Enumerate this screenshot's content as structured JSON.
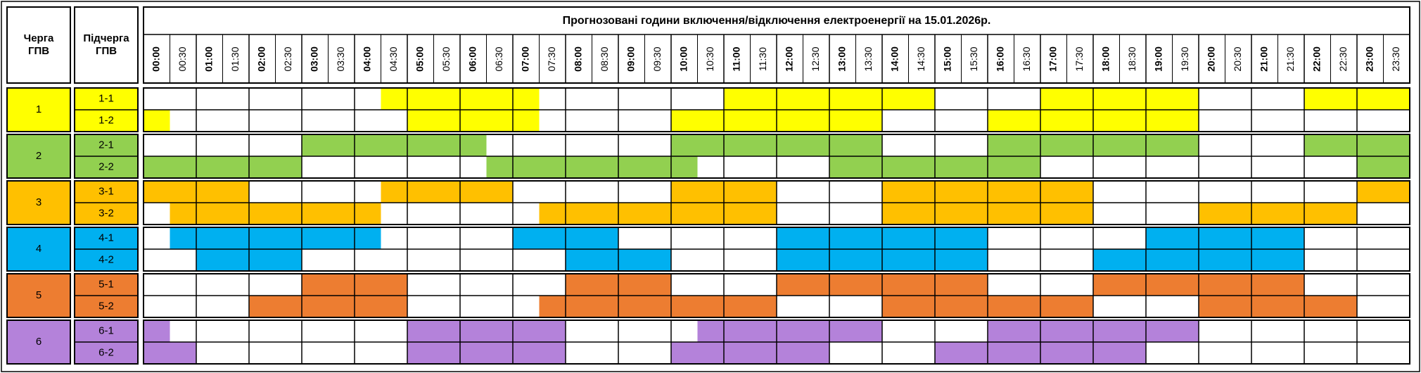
{
  "header": {
    "title": "Прогнозовані години включення/відключення електроенергії на 15.01.2026р.",
    "queue_label": "Черга ГПВ",
    "subqueue_label": "Підчерга ГПВ"
  },
  "times": [
    "00:00",
    "00:30",
    "01:00",
    "01:30",
    "02:00",
    "02:30",
    "03:00",
    "03:30",
    "04:00",
    "04:30",
    "05:00",
    "05:30",
    "06:00",
    "06:30",
    "07:00",
    "07:30",
    "08:00",
    "08:30",
    "09:00",
    "09:30",
    "10:00",
    "10:30",
    "11:00",
    "11:30",
    "12:00",
    "12:30",
    "13:00",
    "13:30",
    "14:00",
    "14:30",
    "15:00",
    "15:30",
    "16:00",
    "16:30",
    "17:00",
    "17:30",
    "18:00",
    "18:30",
    "19:00",
    "19:30",
    "20:00",
    "20:30",
    "21:00",
    "21:30",
    "22:00",
    "22:30",
    "23:00",
    "23:30"
  ],
  "groups": [
    {
      "label": "1",
      "color": "#ffff00",
      "subqueues": [
        {
          "label": "1-1",
          "slots": [
            0,
            0,
            0,
            0,
            0,
            0,
            0,
            0,
            0,
            1,
            1,
            1,
            1,
            1,
            1,
            0,
            0,
            0,
            0,
            0,
            0,
            0,
            1,
            1,
            1,
            1,
            1,
            1,
            1,
            1,
            0,
            0,
            0,
            0,
            1,
            1,
            1,
            1,
            1,
            1,
            0,
            0,
            0,
            0,
            1,
            1,
            1,
            1
          ]
        },
        {
          "label": "1-2",
          "slots": [
            1,
            0,
            0,
            0,
            0,
            0,
            0,
            0,
            0,
            0,
            1,
            1,
            1,
            1,
            1,
            0,
            0,
            0,
            0,
            0,
            1,
            1,
            1,
            1,
            1,
            1,
            1,
            1,
            0,
            0,
            0,
            0,
            1,
            1,
            1,
            1,
            1,
            1,
            1,
            1,
            0,
            0,
            0,
            0,
            0,
            0,
            0,
            0
          ]
        }
      ]
    },
    {
      "label": "2",
      "color": "#92d050",
      "subqueues": [
        {
          "label": "2-1",
          "slots": [
            0,
            0,
            0,
            0,
            0,
            0,
            1,
            1,
            1,
            1,
            1,
            1,
            1,
            0,
            0,
            0,
            0,
            0,
            0,
            0,
            1,
            1,
            1,
            1,
            1,
            1,
            1,
            1,
            0,
            0,
            0,
            0,
            1,
            1,
            1,
            1,
            1,
            1,
            1,
            1,
            0,
            0,
            0,
            0,
            1,
            1,
            1,
            1
          ]
        },
        {
          "label": "2-2",
          "slots": [
            1,
            1,
            1,
            1,
            1,
            1,
            0,
            0,
            0,
            0,
            0,
            0,
            0,
            1,
            1,
            1,
            1,
            1,
            1,
            1,
            1,
            0,
            0,
            0,
            0,
            0,
            1,
            1,
            1,
            1,
            1,
            1,
            1,
            1,
            0,
            0,
            0,
            0,
            0,
            0,
            0,
            0,
            0,
            0,
            0,
            0,
            1,
            1
          ]
        }
      ]
    },
    {
      "label": "3",
      "color": "#ffc000",
      "subqueues": [
        {
          "label": "3-1",
          "slots": [
            1,
            1,
            1,
            1,
            0,
            0,
            0,
            0,
            0,
            1,
            1,
            1,
            1,
            1,
            0,
            0,
            0,
            0,
            0,
            0,
            1,
            1,
            1,
            1,
            0,
            0,
            0,
            0,
            1,
            1,
            1,
            1,
            1,
            1,
            1,
            1,
            0,
            0,
            0,
            0,
            0,
            0,
            0,
            0,
            0,
            0,
            1,
            1
          ]
        },
        {
          "label": "3-2",
          "slots": [
            0,
            1,
            1,
            1,
            1,
            1,
            1,
            1,
            1,
            0,
            0,
            0,
            0,
            0,
            0,
            1,
            1,
            1,
            1,
            1,
            1,
            1,
            1,
            1,
            0,
            0,
            0,
            0,
            1,
            1,
            1,
            1,
            1,
            1,
            1,
            1,
            0,
            0,
            0,
            0,
            1,
            1,
            1,
            1,
            1,
            1,
            0,
            0
          ]
        }
      ]
    },
    {
      "label": "4",
      "color": "#00b0f0",
      "subqueues": [
        {
          "label": "4-1",
          "slots": [
            0,
            1,
            1,
            1,
            1,
            1,
            1,
            1,
            1,
            0,
            0,
            0,
            0,
            0,
            1,
            1,
            1,
            1,
            0,
            0,
            0,
            0,
            0,
            0,
            1,
            1,
            1,
            1,
            1,
            1,
            1,
            1,
            0,
            0,
            0,
            0,
            0,
            0,
            1,
            1,
            1,
            1,
            1,
            1,
            0,
            0,
            0,
            0
          ]
        },
        {
          "label": "4-2",
          "slots": [
            0,
            0,
            1,
            1,
            1,
            1,
            0,
            0,
            0,
            0,
            0,
            0,
            0,
            0,
            0,
            0,
            1,
            1,
            1,
            1,
            0,
            0,
            0,
            0,
            1,
            1,
            1,
            1,
            1,
            1,
            1,
            1,
            0,
            0,
            0,
            0,
            1,
            1,
            1,
            1,
            1,
            1,
            1,
            1,
            0,
            0,
            0,
            0
          ]
        }
      ]
    },
    {
      "label": "5",
      "color": "#ed7d31",
      "subqueues": [
        {
          "label": "5-1",
          "slots": [
            0,
            0,
            0,
            0,
            0,
            0,
            1,
            1,
            1,
            1,
            0,
            0,
            0,
            0,
            0,
            0,
            1,
            1,
            1,
            1,
            0,
            0,
            0,
            0,
            1,
            1,
            1,
            1,
            1,
            1,
            1,
            1,
            0,
            0,
            0,
            0,
            1,
            1,
            1,
            1,
            1,
            1,
            1,
            1,
            0,
            0,
            0,
            0
          ]
        },
        {
          "label": "5-2",
          "slots": [
            0,
            0,
            0,
            0,
            1,
            1,
            1,
            1,
            1,
            1,
            0,
            0,
            0,
            0,
            0,
            1,
            1,
            1,
            1,
            1,
            1,
            1,
            1,
            1,
            0,
            0,
            0,
            0,
            1,
            1,
            1,
            1,
            1,
            1,
            1,
            1,
            0,
            0,
            0,
            0,
            1,
            1,
            1,
            1,
            1,
            1,
            0,
            0
          ]
        }
      ]
    },
    {
      "label": "6",
      "color": "#b482da",
      "subqueues": [
        {
          "label": "6-1",
          "slots": [
            1,
            0,
            0,
            0,
            0,
            0,
            0,
            0,
            0,
            0,
            1,
            1,
            1,
            1,
            1,
            1,
            0,
            0,
            0,
            0,
            0,
            1,
            1,
            1,
            1,
            1,
            1,
            1,
            0,
            0,
            0,
            0,
            1,
            1,
            1,
            1,
            1,
            1,
            1,
            1,
            0,
            0,
            0,
            0,
            0,
            0,
            0,
            0
          ]
        },
        {
          "label": "6-2",
          "slots": [
            1,
            1,
            0,
            0,
            0,
            0,
            0,
            0,
            0,
            0,
            1,
            1,
            1,
            1,
            1,
            1,
            0,
            0,
            0,
            0,
            1,
            1,
            1,
            1,
            1,
            1,
            0,
            0,
            0,
            0,
            1,
            1,
            1,
            1,
            1,
            1,
            1,
            1,
            0,
            0,
            0,
            0,
            0,
            0,
            0,
            0,
            0,
            0
          ]
        }
      ]
    }
  ]
}
